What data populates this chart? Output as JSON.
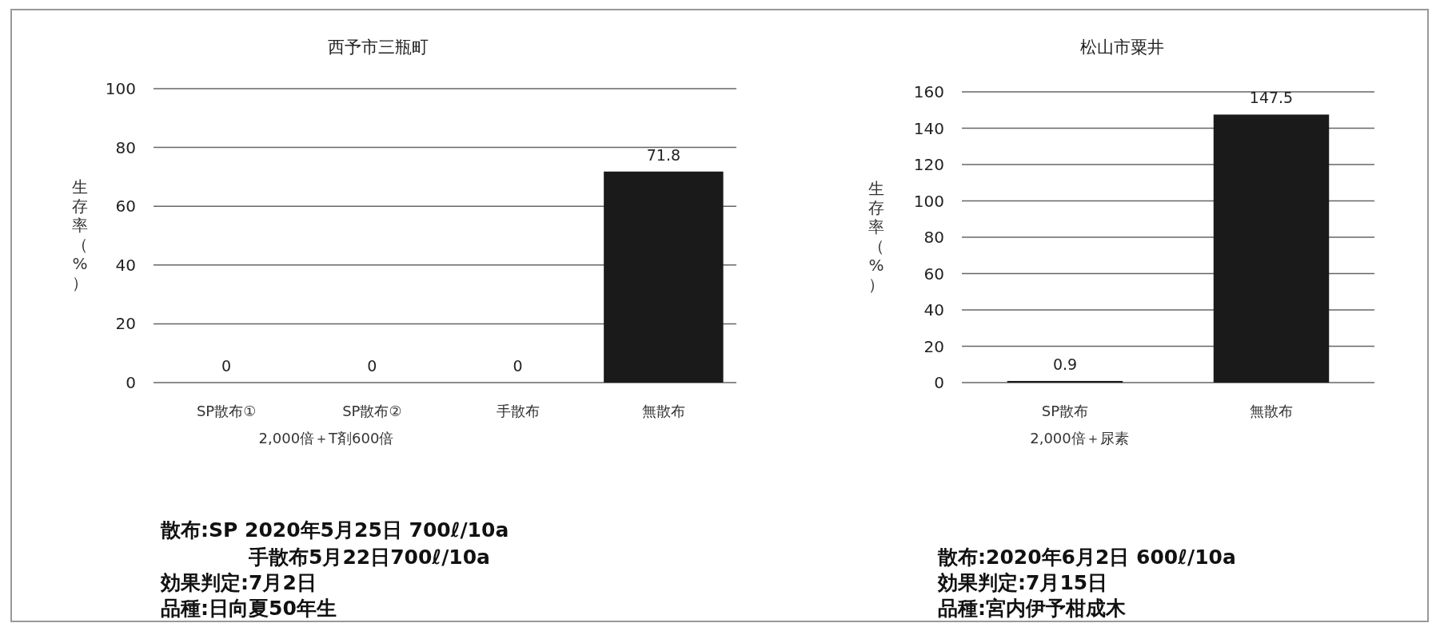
{
  "chart_data": [
    {
      "type": "bar",
      "title": "西予市三瓶町",
      "ylabel": "生存率（%）",
      "categories": [
        "SP散布①",
        "SP散布②",
        "手散布",
        "無散布"
      ],
      "values": [
        0,
        0,
        0,
        71.8
      ],
      "color": "#1a1a1a",
      "ylim": [
        0,
        100
      ],
      "yticks": [
        0,
        20,
        40,
        60,
        80,
        100
      ],
      "grid": "y",
      "data_labels": true,
      "annotations": [
        "2,000倍＋T剤600倍",
        "散布:SP 2020年5月25日 700ℓ/10a",
        "手散布5月22日700ℓ/10a",
        "効果判定:7月2日",
        "品種:日向夏50年生"
      ]
    },
    {
      "type": "bar",
      "title": "松山市粟井",
      "ylabel": "生存率（%）",
      "categories": [
        "SP散布",
        "無散布"
      ],
      "values": [
        0.9,
        147.5
      ],
      "color": "#1a1a1a",
      "ylim": [
        0,
        160
      ],
      "yticks": [
        0,
        20,
        40,
        60,
        80,
        100,
        120,
        140,
        160
      ],
      "grid": "y",
      "data_labels": true,
      "annotations": [
        "2,000倍＋尿素",
        "散布:2020年6月2日 600ℓ/10a",
        "効果判定:7月15日",
        "品種:宮内伊予柑成木"
      ]
    }
  ]
}
